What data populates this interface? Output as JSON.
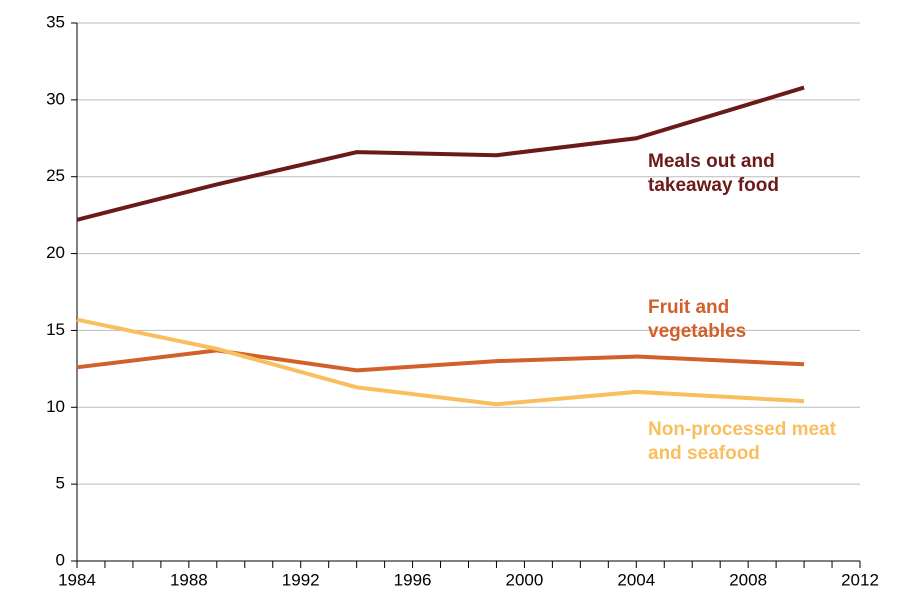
{
  "chart_data": {
    "type": "line",
    "x": [
      1984,
      1989,
      1994,
      1999,
      2004,
      2010
    ],
    "series": [
      {
        "name": "Meals out and takeaway food",
        "color": "#6b1a1a",
        "values": [
          22.2,
          24.5,
          26.6,
          26.4,
          27.5,
          30.8
        ]
      },
      {
        "name": "Fruit and vegetables",
        "color": "#d2602b",
        "values": [
          12.6,
          13.7,
          12.4,
          13.0,
          13.3,
          12.8
        ]
      },
      {
        "name": "Non-processed meat and seafood",
        "color": "#f9be5d",
        "values": [
          15.7,
          13.8,
          11.3,
          10.2,
          11.0,
          10.4
        ]
      }
    ],
    "xlim": [
      1984,
      2012
    ],
    "xticks": [
      1984,
      1988,
      1992,
      1996,
      2000,
      2004,
      2008,
      2012
    ],
    "ylim": [
      0,
      35
    ],
    "yticks": [
      0,
      5,
      10,
      15,
      20,
      25,
      30,
      35
    ],
    "grid": true
  }
}
